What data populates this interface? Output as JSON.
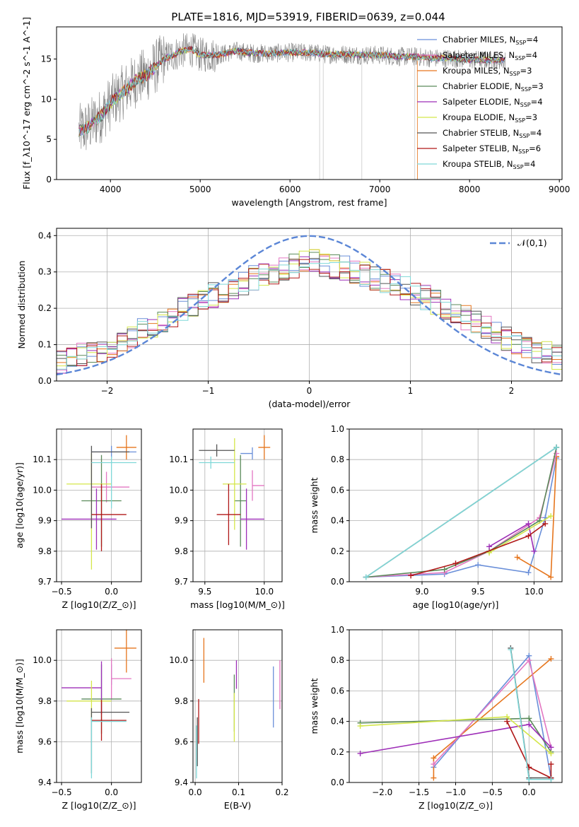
{
  "figure": {
    "title": "PLATE=1816, MJD=53919, FIBERID=0639, z=0.044"
  },
  "chart_data": [
    {
      "id": "spectrum",
      "type": "line",
      "xlabel": "wavelength [Angstrom, rest frame]",
      "ylabel": "Flux [f_λ10^-17 erg cm^-2 s^-1 A^-1]",
      "xlim": [
        3400,
        9030
      ],
      "ylim": [
        0,
        19
      ],
      "xticks": [
        4000,
        5000,
        6000,
        7000,
        8000,
        9000
      ],
      "yticks": [
        0,
        5,
        10,
        15
      ],
      "grid": false,
      "legend_position": "top-right",
      "data_color": "#808080",
      "data_envelope": {
        "x": [
          3650,
          3750,
          3900,
          4000,
          4100,
          4200,
          4300,
          4400,
          4500,
          4600,
          4700,
          4800,
          4900,
          5000,
          5200,
          5400,
          5600,
          5800,
          6000,
          6200,
          6400,
          6600,
          6800,
          7000,
          7200,
          7400,
          7600,
          7800,
          8000,
          8200,
          8400
        ],
        "y": [
          6,
          6.5,
          8,
          9.5,
          10.5,
          11.5,
          12.5,
          13,
          14,
          15,
          15.5,
          16,
          16.2,
          15.5,
          15.5,
          16,
          15.7,
          15.7,
          15.8,
          15.8,
          15.6,
          15.6,
          15.5,
          15.5,
          15.3,
          15.3,
          15.1,
          15.1,
          14.9,
          14.9,
          14.8
        ]
      },
      "series": [
        {
          "name": "Chabrier MILES, N_SSP=4",
          "color": "#6a8fd9"
        },
        {
          "name": "Salpeter MILES, N_SSP=4",
          "color": "#e377c2"
        },
        {
          "name": "Kroupa MILES, N_SSP=3",
          "color": "#e6761e"
        },
        {
          "name": "Chabrier ELODIE, N_SSP=3",
          "color": "#5a8a5a"
        },
        {
          "name": "Salpeter ELODIE, N_SSP=4",
          "color": "#9e2fb8"
        },
        {
          "name": "Kroupa ELODIE, N_SSP=3",
          "color": "#d4e64a"
        },
        {
          "name": "Chabrier STELIB, N_SSP=4",
          "color": "#555555"
        },
        {
          "name": "Salpeter STELIB, N_SSP=6",
          "color": "#b01818"
        },
        {
          "name": "Kroupa STELIB, N_SSP=4",
          "color": "#7fd8d8"
        }
      ]
    },
    {
      "id": "residuals",
      "type": "line",
      "xlabel": "(data-model)/error",
      "ylabel": "Normed distribution",
      "xlim": [
        -2.5,
        2.5
      ],
      "ylim": [
        0,
        0.42
      ],
      "xticks": [
        -2,
        -1,
        0,
        1,
        2
      ],
      "yticks": [
        0.0,
        0.1,
        0.2,
        0.3,
        0.4
      ],
      "grid": true,
      "legend_position": "top-right",
      "normal_label": "𝒩(0,1)",
      "normal_color": "#5b86d6",
      "bin_width": 0.1,
      "profile": {
        "x": [
          -2.5,
          -2.0,
          -1.5,
          -1.0,
          -0.5,
          0.0,
          0.5,
          1.0,
          1.5,
          2.0,
          2.5
        ],
        "y": [
          0.05,
          0.09,
          0.16,
          0.23,
          0.29,
          0.33,
          0.3,
          0.25,
          0.18,
          0.11,
          0.06
        ]
      }
    },
    {
      "id": "age_vs_Z",
      "type": "scatter",
      "xlabel": "Z [log10(Z/Z_⊙)]",
      "ylabel": "age [log10(age/yr)]",
      "xlim": [
        -0.55,
        0.3
      ],
      "ylim": [
        9.7,
        10.2
      ],
      "xticks": [
        -0.5,
        0.0
      ],
      "yticks": [
        9.7,
        9.8,
        9.9,
        10.0,
        10.1
      ],
      "grid": true,
      "points": [
        {
          "x": 0.0,
          "y": 10.125,
          "xerr": [
            0.2,
            0.25
          ],
          "yerr": [
            0.02,
            0.02
          ],
          "color": "#6a8fd9"
        },
        {
          "x": 0.15,
          "y": 10.14,
          "xerr": [
            0.1,
            0.1
          ],
          "yerr": [
            0.04,
            0.04
          ],
          "color": "#e6761e"
        },
        {
          "x": -0.05,
          "y": 10.01,
          "xerr": [
            0.15,
            0.23
          ],
          "yerr": [
            0.05,
            0.05
          ],
          "color": "#e377c2"
        },
        {
          "x": -0.1,
          "y": 9.965,
          "xerr": [
            0.2,
            0.2
          ],
          "yerr": [
            0.15,
            0.15
          ],
          "color": "#5a8a5a"
        },
        {
          "x": -0.15,
          "y": 9.905,
          "xerr": [
            0.35,
            0.2
          ],
          "yerr": [
            0.1,
            0.1
          ],
          "color": "#9e2fb8"
        },
        {
          "x": -0.2,
          "y": 10.02,
          "xerr": [
            0.25,
            0.2
          ],
          "yerr": [
            0.28,
            0.1
          ],
          "color": "#d4e64a"
        },
        {
          "x": -0.2,
          "y": 10.125,
          "xerr": [
            0.0,
            0.38
          ],
          "yerr": [
            0.25,
            0.02
          ],
          "color": "#555555"
        },
        {
          "x": -0.1,
          "y": 9.92,
          "xerr": [
            0.1,
            0.25
          ],
          "yerr": [
            0.12,
            0.1
          ],
          "color": "#b01818"
        },
        {
          "x": 0.0,
          "y": 10.09,
          "xerr": [
            0.2,
            0.25
          ],
          "yerr": [
            0.15,
            0.02
          ],
          "color": "#7fd8d8"
        }
      ]
    },
    {
      "id": "age_vs_mass",
      "type": "scatter",
      "xlabel": "mass [log10(M/M_⊙)]",
      "ylabel": "",
      "xlim": [
        9.4,
        10.15
      ],
      "ylim": [
        9.7,
        10.2
      ],
      "xticks": [
        9.5,
        10.0
      ],
      "yticks": [
        9.7,
        9.8,
        9.9,
        10.0,
        10.1
      ],
      "grid": true,
      "points": [
        {
          "x": 9.9,
          "y": 10.12,
          "xerr": [
            0.1,
            0.0
          ],
          "yerr": [
            0.02,
            0.02
          ],
          "color": "#6a8fd9"
        },
        {
          "x": 10.0,
          "y": 10.14,
          "xerr": [
            0.05,
            0.05
          ],
          "yerr": [
            0.04,
            0.04
          ],
          "color": "#e6761e"
        },
        {
          "x": 9.9,
          "y": 10.015,
          "xerr": [
            0.0,
            0.1
          ],
          "yerr": [
            0.05,
            0.05
          ],
          "color": "#e377c2"
        },
        {
          "x": 9.8,
          "y": 9.965,
          "xerr": [
            0.05,
            0.05
          ],
          "yerr": [
            0.15,
            0.15
          ],
          "color": "#5a8a5a"
        },
        {
          "x": 9.85,
          "y": 9.905,
          "xerr": [
            0.05,
            0.15
          ],
          "yerr": [
            0.1,
            0.1
          ],
          "color": "#9e2fb8"
        },
        {
          "x": 9.75,
          "y": 10.02,
          "xerr": [
            0.1,
            0.1
          ],
          "yerr": [
            0.15,
            0.15
          ],
          "color": "#d4e64a"
        },
        {
          "x": 9.6,
          "y": 10.13,
          "xerr": [
            0.15,
            0.15
          ],
          "yerr": [
            0.02,
            0.02
          ],
          "color": "#555555"
        },
        {
          "x": 9.7,
          "y": 9.92,
          "xerr": [
            0.1,
            0.1
          ],
          "yerr": [
            0.1,
            0.1
          ],
          "color": "#b01818"
        },
        {
          "x": 9.55,
          "y": 10.09,
          "xerr": [
            0.1,
            0.2
          ],
          "yerr": [
            0.02,
            0.02
          ],
          "color": "#7fd8d8"
        }
      ]
    },
    {
      "id": "weight_vs_age",
      "type": "line",
      "xlabel": "age [log10(age/yr)]",
      "ylabel": "mass weight",
      "xlim": [
        8.35,
        10.25
      ],
      "ylim": [
        0,
        1.0
      ],
      "xticks": [
        9.0,
        9.5,
        10.0
      ],
      "yticks": [
        0.0,
        0.2,
        0.4,
        0.6,
        0.8,
        1.0
      ],
      "grid": true,
      "series": [
        {
          "color": "#6a8fd9",
          "x": [
            8.5,
            9.2,
            9.5,
            9.95,
            10.1,
            10.2
          ],
          "y": [
            0.03,
            0.05,
            0.11,
            0.06,
            0.42,
            0.81
          ]
        },
        {
          "color": "#e6761e",
          "x": [
            9.85,
            10.15,
            10.2
          ],
          "y": [
            0.16,
            0.03,
            0.82
          ]
        },
        {
          "color": "#e377c2",
          "x": [
            8.5,
            9.2,
            9.6,
            10.05,
            10.2
          ],
          "y": [
            0.03,
            0.06,
            0.2,
            0.42,
            0.84
          ]
        },
        {
          "color": "#5a8a5a",
          "x": [
            8.5,
            9.2,
            9.6,
            10.05,
            10.2
          ],
          "y": [
            0.03,
            0.08,
            0.2,
            0.4,
            0.88
          ]
        },
        {
          "color": "#9e2fb8",
          "x": [
            9.6,
            9.95,
            10.0
          ],
          "y": [
            0.23,
            0.38,
            0.2
          ]
        },
        {
          "color": "#d4e64a",
          "x": [
            9.6,
            10.15
          ],
          "y": [
            0.19,
            0.43
          ]
        },
        {
          "color": "#555555",
          "x": [
            8.5,
            10.2
          ],
          "y": [
            0.03,
            0.88
          ]
        },
        {
          "color": "#b01818",
          "x": [
            8.9,
            9.3,
            9.95,
            10.1
          ],
          "y": [
            0.04,
            0.12,
            0.3,
            0.38
          ]
        },
        {
          "color": "#7fd8d8",
          "x": [
            8.5,
            10.2
          ],
          "y": [
            0.03,
            0.88
          ]
        }
      ]
    },
    {
      "id": "mass_vs_Z",
      "type": "scatter",
      "xlabel": "Z [log10(Z/Z_⊙)]",
      "ylabel": "mass [log10(M/M_⊙)]",
      "xlim": [
        -0.55,
        0.3
      ],
      "ylim": [
        9.4,
        10.15
      ],
      "xticks": [
        -0.5,
        0.0
      ],
      "yticks": [
        9.4,
        9.6,
        9.8,
        10.0
      ],
      "grid": true,
      "points": [
        {
          "x": 0.0,
          "y": 9.93,
          "xerr": [
            0.0,
            0.0
          ],
          "yerr": [
            0.05,
            0.05
          ],
          "color": "#6a8fd9"
        },
        {
          "x": 0.15,
          "y": 10.06,
          "xerr": [
            0.12,
            0.1
          ],
          "yerr": [
            0.12,
            0.12
          ],
          "color": "#e6761e"
        },
        {
          "x": 0.0,
          "y": 9.91,
          "xerr": [
            0.0,
            0.2
          ],
          "yerr": [
            0.1,
            0.1
          ],
          "color": "#e377c2"
        },
        {
          "x": -0.1,
          "y": 9.81,
          "xerr": [
            0.2,
            0.2
          ],
          "yerr": [
            0.17,
            0.17
          ],
          "color": "#5a8a5a"
        },
        {
          "x": -0.1,
          "y": 9.865,
          "xerr": [
            0.4,
            0.0
          ],
          "yerr": [
            0.13,
            0.13
          ],
          "color": "#9e2fb8"
        },
        {
          "x": -0.2,
          "y": 9.8,
          "xerr": [
            0.25,
            0.2
          ],
          "yerr": [
            0.1,
            0.1
          ],
          "color": "#d4e64a"
        },
        {
          "x": -0.2,
          "y": 9.745,
          "xerr": [
            0.0,
            0.38
          ],
          "yerr": [
            0.3,
            0.02
          ],
          "color": "#555555"
        },
        {
          "x": -0.1,
          "y": 9.705,
          "xerr": [
            0.1,
            0.25
          ],
          "yerr": [
            0.1,
            0.1
          ],
          "color": "#b01818"
        },
        {
          "x": -0.2,
          "y": 9.7,
          "xerr": [
            0.0,
            0.35
          ],
          "yerr": [
            0.28,
            0.02
          ],
          "color": "#7fd8d8"
        }
      ]
    },
    {
      "id": "mass_vs_EBV",
      "type": "scatter",
      "xlabel": "E(B-V)",
      "ylabel": "",
      "xlim": [
        -0.005,
        0.2
      ],
      "ylim": [
        9.4,
        10.15
      ],
      "xticks": [
        0.0,
        0.1,
        0.2
      ],
      "yticks": [
        9.4,
        9.6,
        9.8,
        10.0
      ],
      "grid": true,
      "points": [
        {
          "x": 0.18,
          "y": 9.82,
          "xerr": [
            0,
            0
          ],
          "yerr": [
            0.15,
            0.15
          ],
          "color": "#6a8fd9"
        },
        {
          "x": 0.02,
          "y": 10.0,
          "xerr": [
            0,
            0
          ],
          "yerr": [
            0.11,
            0.11
          ],
          "color": "#e6761e"
        },
        {
          "x": 0.195,
          "y": 9.88,
          "xerr": [
            0,
            0
          ],
          "yerr": [
            0.12,
            0.12
          ],
          "color": "#e377c2"
        },
        {
          "x": 0.09,
          "y": 9.79,
          "xerr": [
            0,
            0
          ],
          "yerr": [
            0.14,
            0.14
          ],
          "color": "#5a8a5a"
        },
        {
          "x": 0.095,
          "y": 9.93,
          "xerr": [
            0,
            0
          ],
          "yerr": [
            0.07,
            0.07
          ],
          "color": "#9e2fb8"
        },
        {
          "x": 0.09,
          "y": 9.72,
          "xerr": [
            0,
            0
          ],
          "yerr": [
            0.12,
            0.12
          ],
          "color": "#d4e64a"
        },
        {
          "x": 0.005,
          "y": 9.6,
          "xerr": [
            0,
            0
          ],
          "yerr": [
            0.12,
            0.12
          ],
          "color": "#555555"
        },
        {
          "x": 0.008,
          "y": 9.7,
          "xerr": [
            0,
            0
          ],
          "yerr": [
            0.11,
            0.11
          ],
          "color": "#b01818"
        },
        {
          "x": 0.003,
          "y": 9.55,
          "xerr": [
            0,
            0
          ],
          "yerr": [
            0.13,
            0.13
          ],
          "color": "#7fd8d8"
        }
      ]
    },
    {
      "id": "weight_vs_Z",
      "type": "line",
      "xlabel": "Z [log10(Z/Z_⊙)]",
      "ylabel": "mass weight",
      "xlim": [
        -2.45,
        0.45
      ],
      "ylim": [
        0,
        1.0
      ],
      "xticks": [
        -2.0,
        -1.5,
        -1.0,
        -0.5,
        0.0
      ],
      "yticks": [
        0.0,
        0.2,
        0.4,
        0.6,
        0.8,
        1.0
      ],
      "grid": true,
      "series": [
        {
          "color": "#6a8fd9",
          "x": [
            -1.3,
            0.0,
            0.3
          ],
          "y": [
            0.1,
            0.83,
            0.03
          ]
        },
        {
          "color": "#e6761e",
          "x": [
            -1.3,
            -1.3,
            0.3
          ],
          "y": [
            0.03,
            0.16,
            0.81
          ]
        },
        {
          "color": "#e377c2",
          "x": [
            -1.3,
            0.0,
            0.3
          ],
          "y": [
            0.12,
            0.8,
            0.23
          ]
        },
        {
          "color": "#5a8a5a",
          "x": [
            -2.3,
            0.0,
            0.3
          ],
          "y": [
            0.39,
            0.42,
            0.2
          ]
        },
        {
          "color": "#9e2fb8",
          "x": [
            -2.3,
            0.0,
            0.3
          ],
          "y": [
            0.19,
            0.38,
            0.23
          ]
        },
        {
          "color": "#d4e64a",
          "x": [
            -2.3,
            -0.3,
            0.3
          ],
          "y": [
            0.37,
            0.43,
            0.19
          ]
        },
        {
          "color": "#555555",
          "x": [
            -0.25,
            0.0,
            0.3
          ],
          "y": [
            0.88,
            0.03,
            0.03
          ]
        },
        {
          "color": "#b01818",
          "x": [
            -0.3,
            0.0,
            0.3,
            0.3
          ],
          "y": [
            0.4,
            0.1,
            0.03,
            0.12
          ]
        },
        {
          "color": "#7fd8d8",
          "x": [
            -0.25,
            0.0,
            0.3
          ],
          "y": [
            0.87,
            0.02,
            0.02
          ]
        }
      ]
    }
  ]
}
